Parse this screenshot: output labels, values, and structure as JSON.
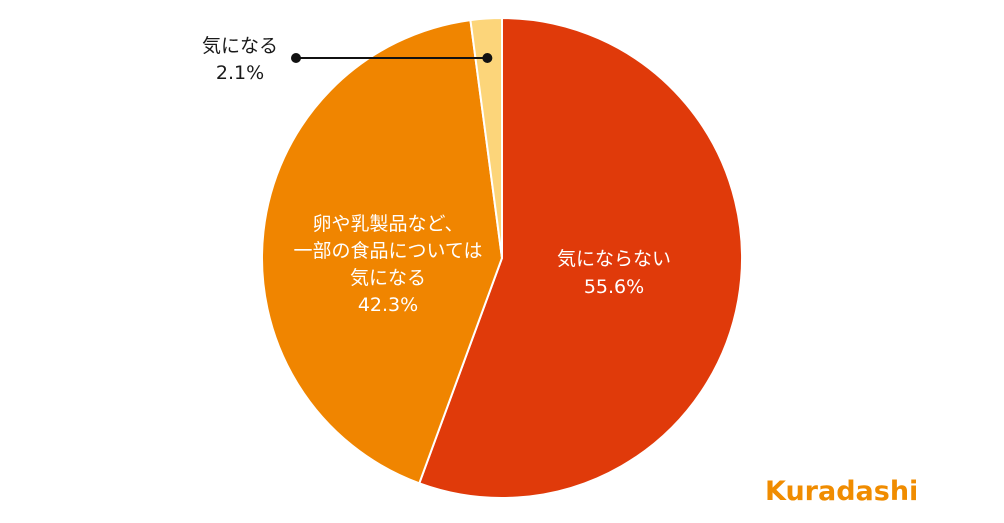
{
  "chart_data": {
    "type": "pie",
    "slices": [
      {
        "label_lines": [
          "気にならない"
        ],
        "value": 55.6,
        "value_text": "55.6%",
        "color": "#e03a0a",
        "text_color": "#ffffff"
      },
      {
        "label_lines": [
          "卵や乳製品など、",
          "一部の食品については",
          "気になる"
        ],
        "value": 42.3,
        "value_text": "42.3%",
        "color": "#f08500",
        "text_color": "#ffffff"
      },
      {
        "label_lines": [
          "気になる"
        ],
        "value": 2.1,
        "value_text": "2.1%",
        "color": "#fcd57a",
        "text_color": "#1a1a1a"
      }
    ],
    "start": "12 o'clock",
    "direction": "clockwise"
  },
  "brand": {
    "logo_text": "Kuradashi",
    "color": "#f08c00"
  }
}
